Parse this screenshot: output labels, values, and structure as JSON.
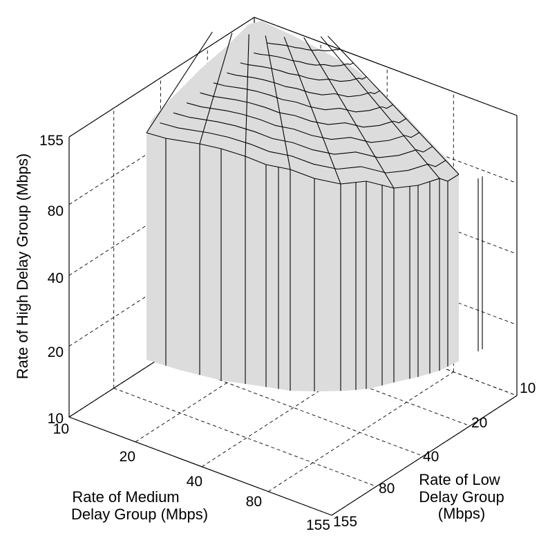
{
  "chart_data": {
    "type": "surface3d",
    "title": "",
    "xlabel": "Rate of Medium Delay Group (Mbps)",
    "ylabel": "Rate of Low Delay Group (Mbps)",
    "zlabel": "Rate of High Delay Group (Mbps)",
    "x_ticks": [
      "10",
      "20",
      "40",
      "80",
      "155"
    ],
    "y_ticks": [
      "10",
      "20",
      "40",
      "80",
      "155"
    ],
    "z_ticks": [
      "10",
      "20",
      "40",
      "80",
      "155"
    ],
    "xlim": [
      10,
      155
    ],
    "ylim": [
      10,
      155
    ],
    "zlim": [
      10,
      155
    ],
    "scale": "log",
    "grid": true,
    "surface_color": "#dcdcdc",
    "xlabel_lines": [
      "Rate of Medium",
      "Delay Group (Mbps)"
    ],
    "ylabel_lines": [
      "Rate of Low",
      "Delay Group",
      "(Mbps)"
    ]
  }
}
